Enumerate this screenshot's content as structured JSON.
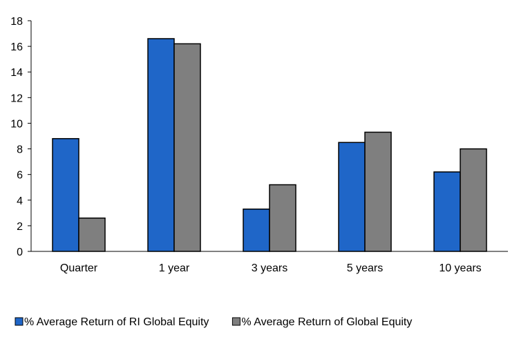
{
  "chart_data": {
    "type": "bar",
    "categories": [
      "Quarter",
      "1 year",
      "3 years",
      "5 years",
      "10 years"
    ],
    "series": [
      {
        "name": "% Average Return of RI Global Equity",
        "color": "#1f66c8",
        "values": [
          8.8,
          16.6,
          3.3,
          8.5,
          6.2
        ]
      },
      {
        "name": "% Average Return of Global Equity",
        "color": "#7f7f7f",
        "values": [
          2.6,
          16.2,
          5.2,
          9.3,
          8.0
        ]
      }
    ],
    "ylim": [
      0,
      18
    ],
    "yticks": [
      0,
      2,
      4,
      6,
      8,
      10,
      12,
      14,
      16,
      18
    ],
    "grid": false,
    "legend_position": "bottom"
  }
}
